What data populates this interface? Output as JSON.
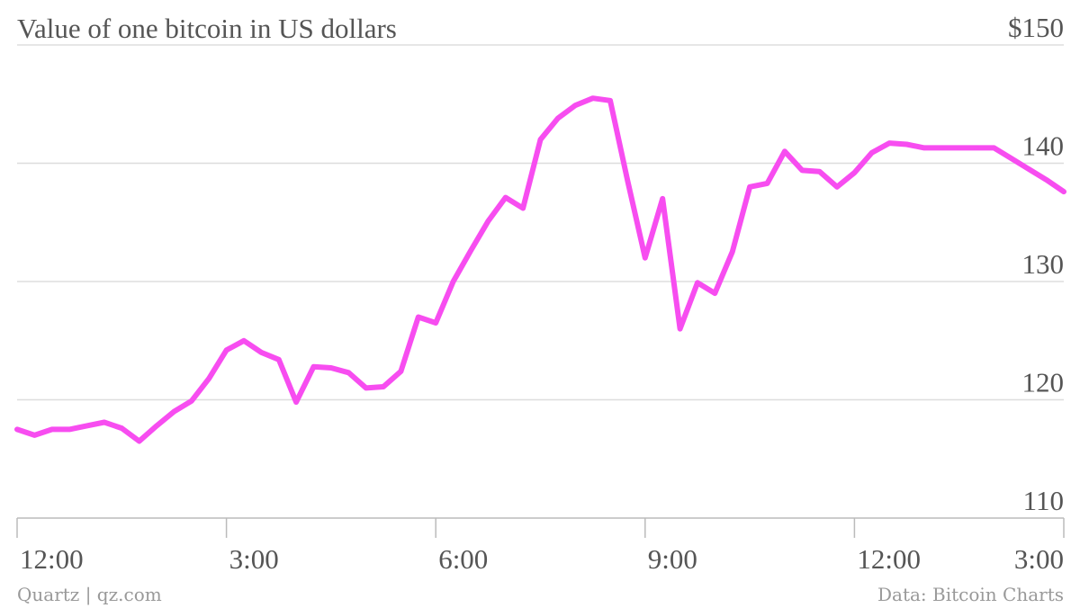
{
  "chart_data": {
    "type": "line",
    "title": "Value of one bitcoin in US dollars",
    "y_ticks": [
      "$150",
      "140",
      "130",
      "120",
      "110"
    ],
    "y_tick_values": [
      150,
      140,
      130,
      120,
      110
    ],
    "ylim": [
      110,
      150
    ],
    "x_ticks": [
      "12:00",
      "3:00",
      "6:00",
      "9:00",
      "12:00",
      "3:00"
    ],
    "x_tick_hours": [
      0,
      3,
      6,
      9,
      12,
      15
    ],
    "xlim_hours": [
      0,
      15
    ],
    "grid": true,
    "line_color": "#f74df0",
    "series": [
      {
        "hours": [
          0.0,
          0.25,
          0.5,
          0.75,
          1.0,
          1.25,
          1.5,
          1.75,
          2.0,
          2.25,
          2.5,
          2.75,
          3.0,
          3.25,
          3.5,
          3.75,
          4.0,
          4.25,
          4.5,
          4.75,
          5.0,
          5.25,
          5.5,
          5.75,
          6.0,
          6.25,
          6.5,
          6.75,
          7.0,
          7.25,
          7.5,
          7.75,
          8.0,
          8.25,
          8.5,
          8.75,
          9.0,
          9.25,
          9.5,
          9.75,
          10.0,
          10.25,
          10.5,
          10.75,
          11.0,
          11.25,
          11.5,
          11.75,
          12.0,
          12.25,
          12.5,
          12.75,
          13.0,
          13.25,
          13.5,
          13.75,
          14.0,
          14.25,
          14.5,
          14.75,
          15.0
        ],
        "values": [
          117.5,
          117.0,
          117.5,
          117.5,
          117.8,
          118.1,
          117.6,
          116.5,
          117.8,
          119.0,
          119.9,
          121.8,
          124.2,
          125.0,
          124.0,
          123.4,
          119.8,
          122.8,
          122.7,
          122.3,
          121.0,
          121.1,
          122.4,
          127.0,
          126.5,
          130.0,
          132.6,
          135.1,
          137.1,
          136.2,
          142.0,
          143.8,
          144.9,
          145.5,
          145.3,
          138.5,
          132.0,
          137.0,
          126.0,
          129.9,
          129.0,
          132.5,
          138.0,
          138.3,
          141.0,
          139.4,
          139.3,
          138.0,
          139.2,
          140.9,
          141.7,
          141.6,
          141.3,
          141.3,
          141.3,
          141.3,
          141.3,
          140.4,
          139.5,
          138.6,
          137.6
        ]
      }
    ]
  },
  "credits": {
    "source_left": "Quartz | qz.com",
    "source_right": "Data: Bitcoin Charts"
  }
}
